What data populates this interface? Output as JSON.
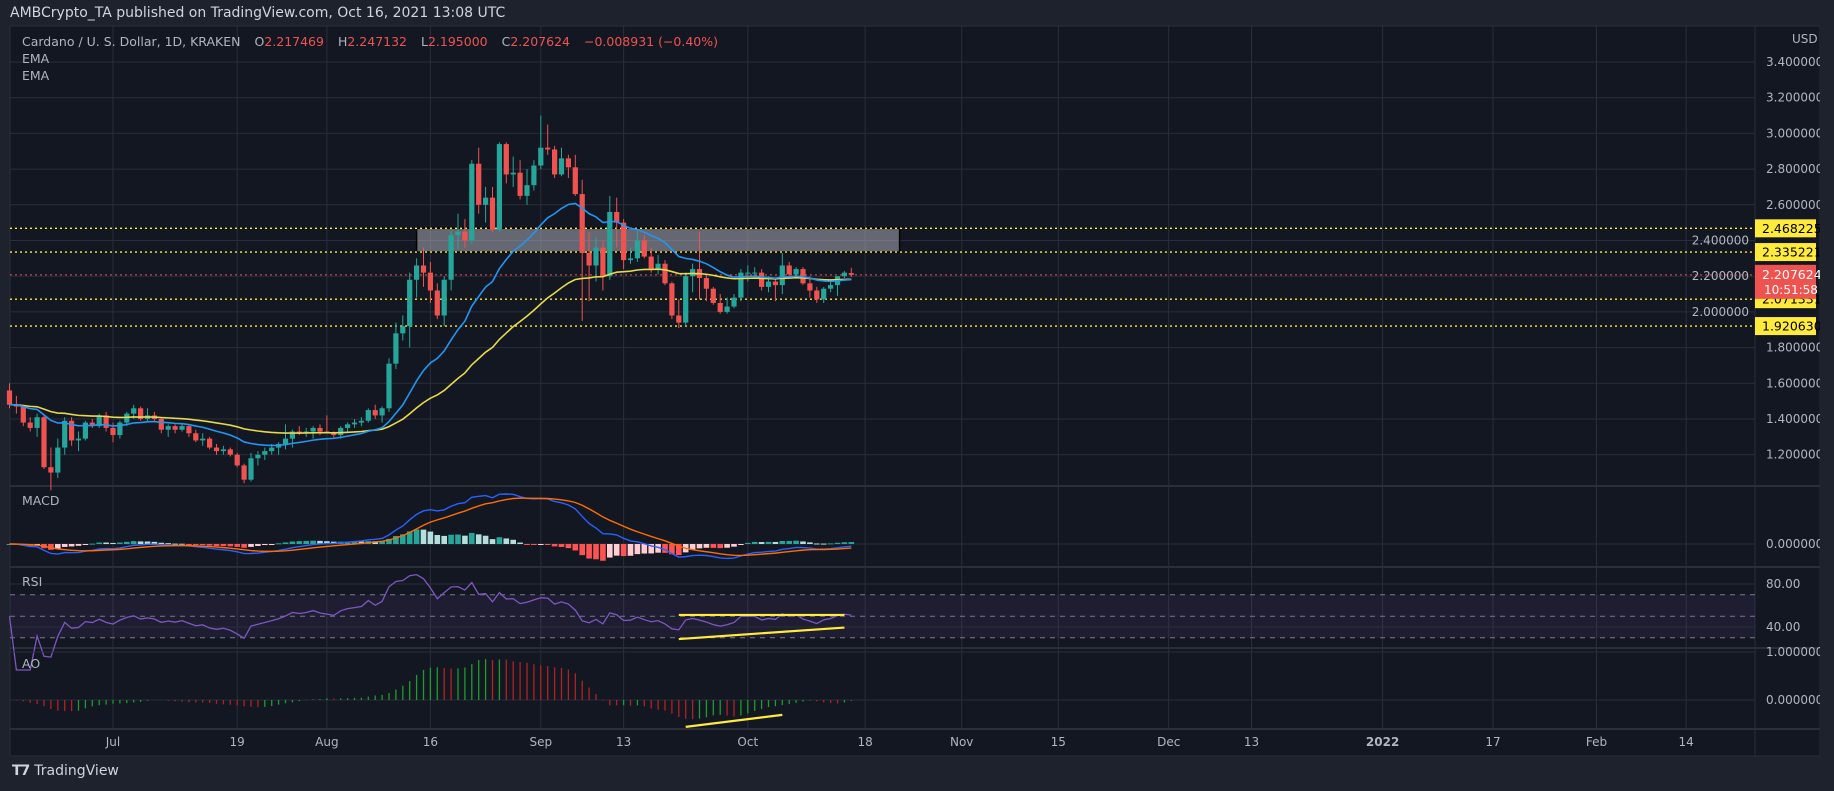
{
  "header": {
    "publisher_line": "AMBCrypto_TA published on TradingView.com, Oct 16, 2021 13:08 UTC"
  },
  "legend": {
    "symbol": "Cardano / U. S. Dollar, 1D, KRAKEN",
    "o_label": "O",
    "o": "2.217469",
    "h_label": "H",
    "h": "2.247132",
    "l_label": "L",
    "l": "2.195000",
    "c_label": "C",
    "c": "2.207624",
    "change": "−0.008931 (−0.40%)"
  },
  "indicators": {
    "ema1": "EMA",
    "ema2": "EMA",
    "macd": "MACD",
    "rsi": "RSI",
    "ao": "AO"
  },
  "currency": "USD",
  "footer": {
    "brand": "TradingView",
    "logo_icon": "tradingview-logo"
  },
  "chart_data": {
    "type": "candlestick",
    "title": "Cardano / U. S. Dollar, 1D, KRAKEN",
    "colors": {
      "up": "#26a69a",
      "down": "#ef5350",
      "ema_fast": "#2196f3",
      "ema_slow": "#e7d94b",
      "macd": "#2962ff",
      "signal": "#ff6d00",
      "rsi": "#7e57c2",
      "ao_up": "#1b9e2c",
      "ao_down": "#b22222",
      "level": "#ffeb3b",
      "last": "#ef5350",
      "background": "#131722",
      "grid": "#2a2e39"
    },
    "price_axis": {
      "ylim": [
        1.0,
        3.5
      ],
      "ticks": [
        "3.400000",
        "3.200000",
        "3.000000",
        "2.800000",
        "2.600000",
        "2.400000",
        "2.200000",
        "2.000000",
        "1.800000",
        "1.600000",
        "1.400000",
        "1.200000"
      ]
    },
    "macd_axis": {
      "ticks": [
        "0.000000"
      ]
    },
    "rsi_axis": {
      "ticks": [
        "80.00",
        "40.00"
      ],
      "bands": [
        70,
        50,
        30
      ]
    },
    "ao_axis": {
      "ticks": [
        "1.000000",
        "0.000000"
      ]
    },
    "time_ticks": [
      {
        "label": "Jul",
        "date": "2021-07-01"
      },
      {
        "label": "19",
        "date": "2021-07-19"
      },
      {
        "label": "Aug",
        "date": "2021-08-01"
      },
      {
        "label": "16",
        "date": "2021-08-16"
      },
      {
        "label": "Sep",
        "date": "2021-09-01"
      },
      {
        "label": "13",
        "date": "2021-09-13"
      },
      {
        "label": "Oct",
        "date": "2021-10-01"
      },
      {
        "label": "18",
        "date": "2021-10-18"
      },
      {
        "label": "Nov",
        "date": "2021-11-01"
      },
      {
        "label": "15",
        "date": "2021-11-15"
      },
      {
        "label": "Dec",
        "date": "2021-12-01"
      },
      {
        "label": "13",
        "date": "2021-12-13"
      },
      {
        "label": "2022",
        "date": "2022-01-01"
      },
      {
        "label": "17",
        "date": "2022-01-17"
      },
      {
        "label": "Feb",
        "date": "2022-02-01"
      },
      {
        "label": "14",
        "date": "2022-02-14"
      }
    ],
    "levels": [
      {
        "value": "2.468225",
        "color": "#ffeb3b"
      },
      {
        "value": "2.335221",
        "color": "#ffeb3b"
      },
      {
        "value": "2.071331",
        "color": "#ffeb3b"
      },
      {
        "value": "1.920630",
        "color": "#ffeb3b"
      }
    ],
    "last_price": {
      "value": "2.207624",
      "countdown": "10:51:58"
    },
    "zone": {
      "from": 2.335221,
      "to": 2.468225,
      "start": "2021-08-14",
      "end": "2021-10-23"
    },
    "drawings": [
      {
        "pane": "rsi",
        "points": [
          [
            "2021-09-21",
            51.2
          ],
          [
            "2021-10-15",
            51.2
          ]
        ]
      },
      {
        "pane": "rsi",
        "points": [
          [
            "2021-09-21",
            28.8
          ],
          [
            "2021-10-15",
            39.5
          ]
        ]
      },
      {
        "pane": "ao",
        "points": [
          [
            "2021-09-22",
            -0.56
          ],
          [
            "2021-10-06",
            -0.31
          ]
        ]
      }
    ],
    "candles_columns": [
      "date",
      "open",
      "high",
      "low",
      "close"
    ],
    "candles": [
      [
        "2021-06-16",
        1.56,
        1.6,
        1.46,
        1.48
      ],
      [
        "2021-06-17",
        1.48,
        1.53,
        1.43,
        1.47
      ],
      [
        "2021-06-18",
        1.47,
        1.48,
        1.36,
        1.38
      ],
      [
        "2021-06-19",
        1.38,
        1.41,
        1.33,
        1.35
      ],
      [
        "2021-06-20",
        1.35,
        1.43,
        1.3,
        1.41
      ],
      [
        "2021-06-21",
        1.41,
        1.42,
        1.12,
        1.13
      ],
      [
        "2021-06-22",
        1.13,
        1.24,
        1.0,
        1.1
      ],
      [
        "2021-06-23",
        1.1,
        1.29,
        1.07,
        1.24
      ],
      [
        "2021-06-24",
        1.24,
        1.41,
        1.2,
        1.39
      ],
      [
        "2021-06-25",
        1.39,
        1.41,
        1.25,
        1.28
      ],
      [
        "2021-06-26",
        1.28,
        1.33,
        1.22,
        1.29
      ],
      [
        "2021-06-27",
        1.29,
        1.39,
        1.28,
        1.38
      ],
      [
        "2021-06-28",
        1.38,
        1.4,
        1.35,
        1.36
      ],
      [
        "2021-06-29",
        1.36,
        1.43,
        1.35,
        1.42
      ],
      [
        "2021-06-30",
        1.42,
        1.44,
        1.33,
        1.35
      ],
      [
        "2021-07-01",
        1.35,
        1.38,
        1.27,
        1.31
      ],
      [
        "2021-07-02",
        1.31,
        1.39,
        1.29,
        1.38
      ],
      [
        "2021-07-03",
        1.38,
        1.44,
        1.36,
        1.43
      ],
      [
        "2021-07-04",
        1.43,
        1.48,
        1.4,
        1.46
      ],
      [
        "2021-07-05",
        1.46,
        1.47,
        1.39,
        1.4
      ],
      [
        "2021-07-06",
        1.4,
        1.46,
        1.39,
        1.42
      ],
      [
        "2021-07-07",
        1.42,
        1.44,
        1.38,
        1.4
      ],
      [
        "2021-07-08",
        1.4,
        1.41,
        1.32,
        1.34
      ],
      [
        "2021-07-09",
        1.34,
        1.37,
        1.3,
        1.36
      ],
      [
        "2021-07-10",
        1.36,
        1.37,
        1.32,
        1.34
      ],
      [
        "2021-07-11",
        1.34,
        1.37,
        1.33,
        1.36
      ],
      [
        "2021-07-12",
        1.36,
        1.37,
        1.3,
        1.32
      ],
      [
        "2021-07-13",
        1.32,
        1.34,
        1.27,
        1.28
      ],
      [
        "2021-07-14",
        1.28,
        1.32,
        1.25,
        1.29
      ],
      [
        "2021-07-15",
        1.29,
        1.3,
        1.23,
        1.24
      ],
      [
        "2021-07-16",
        1.24,
        1.26,
        1.2,
        1.22
      ],
      [
        "2021-07-17",
        1.22,
        1.25,
        1.2,
        1.23
      ],
      [
        "2021-07-18",
        1.23,
        1.24,
        1.19,
        1.2
      ],
      [
        "2021-07-19",
        1.2,
        1.21,
        1.13,
        1.14
      ],
      [
        "2021-07-20",
        1.14,
        1.15,
        1.04,
        1.06
      ],
      [
        "2021-07-21",
        1.06,
        1.21,
        1.05,
        1.18
      ],
      [
        "2021-07-22",
        1.18,
        1.22,
        1.14,
        1.2
      ],
      [
        "2021-07-23",
        1.2,
        1.24,
        1.17,
        1.22
      ],
      [
        "2021-07-24",
        1.22,
        1.26,
        1.2,
        1.24
      ],
      [
        "2021-07-25",
        1.24,
        1.27,
        1.2,
        1.26
      ],
      [
        "2021-07-26",
        1.26,
        1.37,
        1.23,
        1.29
      ],
      [
        "2021-07-27",
        1.29,
        1.34,
        1.24,
        1.33
      ],
      [
        "2021-07-28",
        1.33,
        1.36,
        1.31,
        1.32
      ],
      [
        "2021-07-29",
        1.32,
        1.35,
        1.3,
        1.33
      ],
      [
        "2021-07-30",
        1.33,
        1.36,
        1.29,
        1.35
      ],
      [
        "2021-07-31",
        1.35,
        1.37,
        1.31,
        1.33
      ],
      [
        "2021-08-01",
        1.33,
        1.42,
        1.32,
        1.32
      ],
      [
        "2021-08-02",
        1.32,
        1.33,
        1.29,
        1.31
      ],
      [
        "2021-08-03",
        1.31,
        1.36,
        1.29,
        1.35
      ],
      [
        "2021-08-04",
        1.35,
        1.38,
        1.32,
        1.37
      ],
      [
        "2021-08-05",
        1.37,
        1.4,
        1.35,
        1.38
      ],
      [
        "2021-08-06",
        1.38,
        1.41,
        1.36,
        1.39
      ],
      [
        "2021-08-07",
        1.39,
        1.46,
        1.38,
        1.45
      ],
      [
        "2021-08-08",
        1.45,
        1.48,
        1.4,
        1.42
      ],
      [
        "2021-08-09",
        1.42,
        1.47,
        1.38,
        1.46
      ],
      [
        "2021-08-10",
        1.46,
        1.74,
        1.44,
        1.71
      ],
      [
        "2021-08-11",
        1.71,
        1.94,
        1.68,
        1.88
      ],
      [
        "2021-08-12",
        1.88,
        1.98,
        1.84,
        1.92
      ],
      [
        "2021-08-13",
        1.92,
        2.22,
        1.8,
        2.18
      ],
      [
        "2021-08-14",
        2.18,
        2.3,
        2.08,
        2.26
      ],
      [
        "2021-08-15",
        2.26,
        2.36,
        2.14,
        2.22
      ],
      [
        "2021-08-16",
        2.22,
        2.28,
        2.05,
        2.12
      ],
      [
        "2021-08-17",
        2.12,
        2.16,
        1.96,
        1.98
      ],
      [
        "2021-08-18",
        1.98,
        2.2,
        1.92,
        2.18
      ],
      [
        "2021-08-19",
        2.18,
        2.46,
        2.12,
        2.43
      ],
      [
        "2021-08-20",
        2.43,
        2.55,
        2.35,
        2.45
      ],
      [
        "2021-08-21",
        2.45,
        2.52,
        2.36,
        2.4
      ],
      [
        "2021-08-22",
        2.4,
        2.85,
        2.38,
        2.83
      ],
      [
        "2021-08-23",
        2.83,
        2.92,
        2.55,
        2.6
      ],
      [
        "2021-08-24",
        2.6,
        2.7,
        2.5,
        2.64
      ],
      [
        "2021-08-25",
        2.64,
        2.7,
        2.45,
        2.46
      ],
      [
        "2021-08-26",
        2.46,
        2.95,
        2.45,
        2.94
      ],
      [
        "2021-08-27",
        2.94,
        2.95,
        2.72,
        2.77
      ],
      [
        "2021-08-28",
        2.77,
        2.87,
        2.7,
        2.78
      ],
      [
        "2021-08-29",
        2.78,
        2.85,
        2.63,
        2.65
      ],
      [
        "2021-08-30",
        2.65,
        2.8,
        2.6,
        2.71
      ],
      [
        "2021-08-31",
        2.71,
        2.85,
        2.68,
        2.82
      ],
      [
        "2021-09-01",
        2.82,
        3.1,
        2.8,
        2.92
      ],
      [
        "2021-09-02",
        2.92,
        3.05,
        2.88,
        2.91
      ],
      [
        "2021-09-03",
        2.91,
        2.93,
        2.75,
        2.77
      ],
      [
        "2021-09-04",
        2.77,
        2.92,
        2.76,
        2.86
      ],
      [
        "2021-09-05",
        2.86,
        2.88,
        2.75,
        2.81
      ],
      [
        "2021-09-06",
        2.81,
        2.88,
        2.65,
        2.66
      ],
      [
        "2021-09-07",
        2.66,
        2.74,
        1.95,
        2.33
      ],
      [
        "2021-09-08",
        2.33,
        2.45,
        2.06,
        2.26
      ],
      [
        "2021-09-09",
        2.26,
        2.42,
        2.17,
        2.36
      ],
      [
        "2021-09-10",
        2.36,
        2.4,
        2.12,
        2.2
      ],
      [
        "2021-09-11",
        2.2,
        2.65,
        2.18,
        2.56
      ],
      [
        "2021-09-12",
        2.56,
        2.64,
        2.36,
        2.5
      ],
      [
        "2021-09-13",
        2.5,
        2.52,
        2.24,
        2.29
      ],
      [
        "2021-09-14",
        2.29,
        2.36,
        2.27,
        2.3
      ],
      [
        "2021-09-15",
        2.3,
        2.46,
        2.28,
        2.4
      ],
      [
        "2021-09-16",
        2.4,
        2.43,
        2.3,
        2.31
      ],
      [
        "2021-09-17",
        2.31,
        2.36,
        2.22,
        2.24
      ],
      [
        "2021-09-18",
        2.24,
        2.32,
        2.21,
        2.27
      ],
      [
        "2021-09-19",
        2.27,
        2.29,
        2.15,
        2.16
      ],
      [
        "2021-09-20",
        2.16,
        2.17,
        1.96,
        1.98
      ],
      [
        "2021-09-21",
        1.98,
        2.07,
        1.91,
        1.94
      ],
      [
        "2021-09-22",
        1.94,
        2.22,
        1.92,
        2.2
      ],
      [
        "2021-09-23",
        2.2,
        2.27,
        2.11,
        2.24
      ],
      [
        "2021-09-24",
        2.24,
        2.45,
        2.07,
        2.19
      ],
      [
        "2021-09-25",
        2.19,
        2.21,
        2.06,
        2.13
      ],
      [
        "2021-09-26",
        2.13,
        2.14,
        2.04,
        2.05
      ],
      [
        "2021-09-27",
        2.05,
        2.1,
        1.99,
        2.0
      ],
      [
        "2021-09-28",
        2.0,
        2.08,
        1.99,
        2.03
      ],
      [
        "2021-09-29",
        2.03,
        2.1,
        2.02,
        2.08
      ],
      [
        "2021-09-30",
        2.08,
        2.24,
        2.06,
        2.22
      ],
      [
        "2021-10-01",
        2.22,
        2.26,
        2.17,
        2.22
      ],
      [
        "2021-10-02",
        2.22,
        2.25,
        2.2,
        2.22
      ],
      [
        "2021-10-03",
        2.22,
        2.24,
        2.12,
        2.14
      ],
      [
        "2021-10-04",
        2.14,
        2.2,
        2.11,
        2.17
      ],
      [
        "2021-10-05",
        2.17,
        2.19,
        2.06,
        2.15
      ],
      [
        "2021-10-06",
        2.15,
        2.33,
        2.1,
        2.26
      ],
      [
        "2021-10-07",
        2.26,
        2.28,
        2.2,
        2.21
      ],
      [
        "2021-10-08",
        2.21,
        2.25,
        2.2,
        2.24
      ],
      [
        "2021-10-09",
        2.24,
        2.25,
        2.15,
        2.16
      ],
      [
        "2021-10-10",
        2.16,
        2.2,
        2.08,
        2.12
      ],
      [
        "2021-10-11",
        2.12,
        2.14,
        2.05,
        2.07
      ],
      [
        "2021-10-12",
        2.07,
        2.14,
        2.05,
        2.13
      ],
      [
        "2021-10-13",
        2.13,
        2.17,
        2.11,
        2.15
      ],
      [
        "2021-10-14",
        2.15,
        2.2,
        2.09,
        2.2
      ],
      [
        "2021-10-15",
        2.2,
        2.23,
        2.19,
        2.22
      ],
      [
        "2021-10-16",
        2.217469,
        2.247132,
        2.195,
        2.207624
      ]
    ]
  }
}
